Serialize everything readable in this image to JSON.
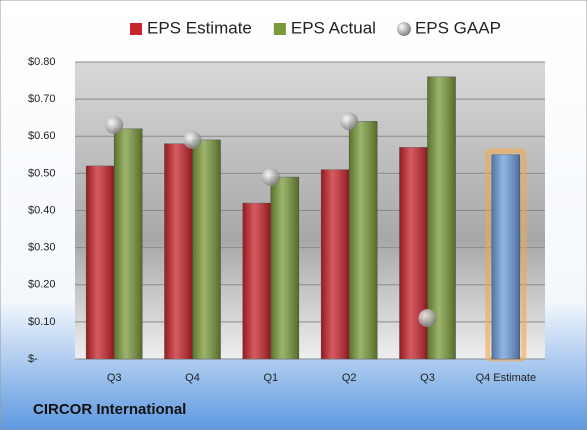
{
  "chart_data": {
    "type": "bar",
    "title": "CIRCOR International",
    "categories": [
      "Q3",
      "Q4",
      "Q1",
      "Q2",
      "Q3",
      "Q4 Estimate"
    ],
    "series": [
      {
        "name": "EPS Estimate",
        "color": "#c8242c",
        "values": [
          0.52,
          0.58,
          0.42,
          0.51,
          0.57,
          0.55
        ],
        "point_colors": [
          "#c8242c",
          "#c8242c",
          "#c8242c",
          "#c8242c",
          "#c8242c",
          "#6d9ddb"
        ]
      },
      {
        "name": "EPS Actual",
        "color": "#7a9a3a",
        "values": [
          0.62,
          0.59,
          0.49,
          0.64,
          0.76,
          null
        ]
      },
      {
        "name": "EPS GAAP",
        "color": "#b0b0b0",
        "type": "scatter",
        "values": [
          0.63,
          0.59,
          0.49,
          0.64,
          0.11,
          null
        ]
      }
    ],
    "ylim": [
      0,
      0.8
    ],
    "yticks": [
      {
        "value": 0,
        "label": "$-"
      },
      {
        "value": 0.1,
        "label": "$0.10"
      },
      {
        "value": 0.2,
        "label": "$0.20"
      },
      {
        "value": 0.3,
        "label": "$0.30"
      },
      {
        "value": 0.4,
        "label": "$0.40"
      },
      {
        "value": 0.5,
        "label": "$0.50"
      },
      {
        "value": 0.6,
        "label": "$0.60"
      },
      {
        "value": 0.7,
        "label": "$0.70"
      },
      {
        "value": 0.8,
        "label": "$0.80"
      }
    ],
    "grid": true,
    "legend": "top"
  }
}
